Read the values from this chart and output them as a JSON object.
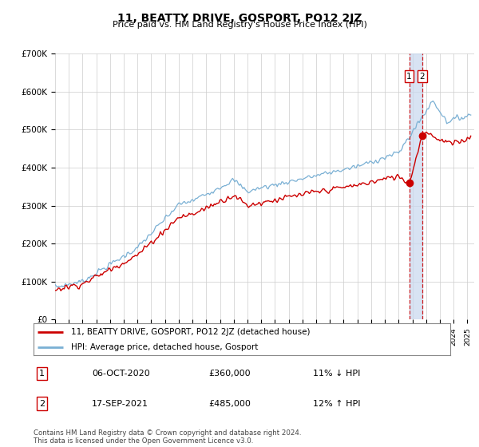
{
  "title": "11, BEATTY DRIVE, GOSPORT, PO12 2JZ",
  "subtitle": "Price paid vs. HM Land Registry's House Price Index (HPI)",
  "ylim": [
    0,
    700000
  ],
  "xlim_start": 1995.0,
  "xlim_end": 2025.5,
  "hpi_color": "#7ab0d4",
  "price_color": "#cc0000",
  "dashed_color": "#cc0000",
  "shade_color": "#c8d8ee",
  "marker1_date": 2020.77,
  "marker2_date": 2021.72,
  "marker1_price": 360000,
  "marker2_price": 485000,
  "annotation1": "06-OCT-2020",
  "annotation1_val": "£360,000",
  "annotation1_hpi": "11% ↓ HPI",
  "annotation2": "17-SEP-2021",
  "annotation2_val": "£485,000",
  "annotation2_hpi": "12% ↑ HPI",
  "legend_label1": "11, BEATTY DRIVE, GOSPORT, PO12 2JZ (detached house)",
  "legend_label2": "HPI: Average price, detached house, Gosport",
  "footer": "Contains HM Land Registry data © Crown copyright and database right 2024.\nThis data is licensed under the Open Government Licence v3.0.",
  "background_color": "#ffffff",
  "grid_color": "#cccccc"
}
